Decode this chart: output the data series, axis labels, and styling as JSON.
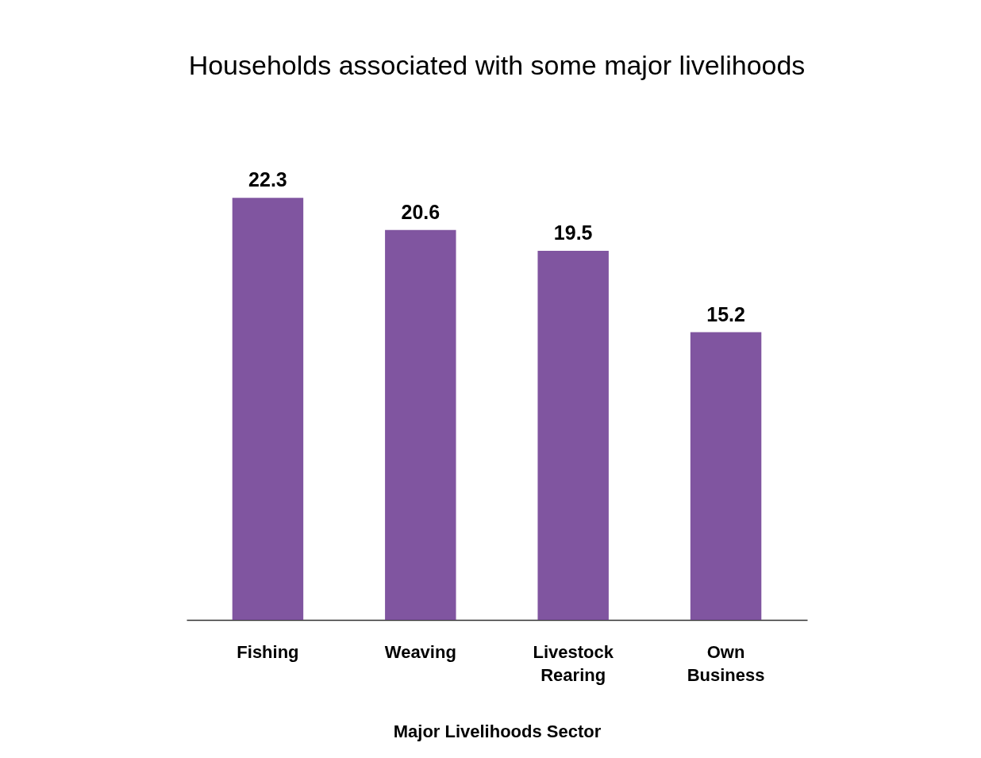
{
  "chart_data": {
    "type": "bar",
    "title": "Households associated with some major livelihoods",
    "xlabel": "Major Livelihoods Sector",
    "categories": [
      "Fishing",
      "Weaving",
      "Livestock Rearing",
      "Own Business"
    ],
    "values": [
      22.3,
      20.6,
      19.5,
      15.2
    ],
    "color": "#8055a0",
    "data_labels": true
  }
}
